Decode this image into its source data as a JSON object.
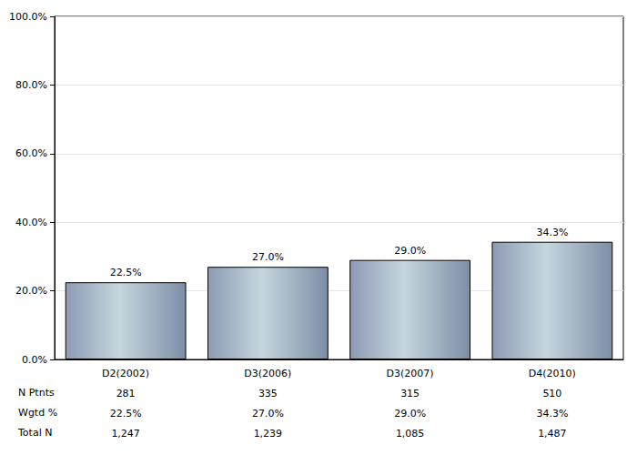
{
  "chart_data": {
    "type": "bar",
    "categories": [
      "D2(2002)",
      "D3(2006)",
      "D3(2007)",
      "D4(2010)"
    ],
    "values": [
      22.5,
      27.0,
      29.0,
      34.3
    ],
    "value_labels": [
      "22.5%",
      "27.0%",
      "29.0%",
      "34.3%"
    ],
    "color": "#c5d6de",
    "ylim": [
      0,
      100
    ],
    "yticks": [
      {
        "value": 0,
        "label": "0.0%"
      },
      {
        "value": 20,
        "label": "20.0%"
      },
      {
        "value": 40,
        "label": "40.0%"
      },
      {
        "value": 60,
        "label": "60.0%"
      },
      {
        "value": 80,
        "label": "80.0%"
      },
      {
        "value": 100,
        "label": "100.0%"
      }
    ],
    "grid": true,
    "data_labels": true,
    "table": {
      "rows": [
        {
          "label": "N Ptnts",
          "values": [
            "281",
            "335",
            "315",
            "510"
          ]
        },
        {
          "label": "Wgtd %",
          "values": [
            "22.5%",
            "27.0%",
            "29.0%",
            "34.3%"
          ]
        },
        {
          "label": "Total N",
          "values": [
            "1,247",
            "1,239",
            "1,085",
            "1,487"
          ]
        }
      ]
    }
  }
}
